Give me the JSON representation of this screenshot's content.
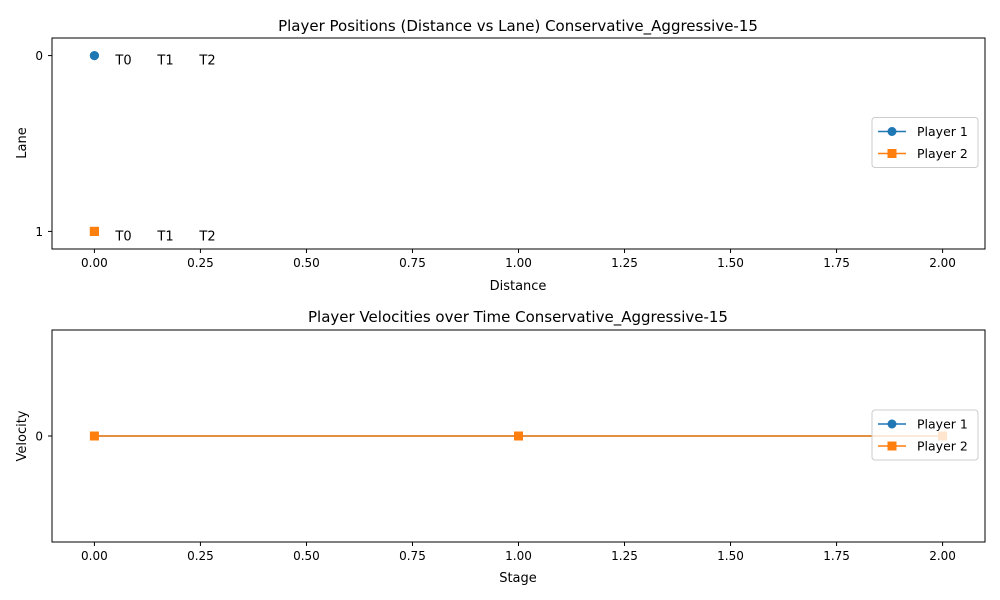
{
  "colors": {
    "player1": "#1f77b4",
    "player2": "#ff7f0e"
  },
  "chart_data": [
    {
      "type": "scatter",
      "title": "Player Positions (Distance vs Lane) Conservative_Aggressive-15",
      "xlabel": "Distance",
      "ylabel": "Lane",
      "xlim": [
        -0.1,
        2.1
      ],
      "ylim": [
        1.1,
        -0.1
      ],
      "y_inverted": true,
      "x_ticks": [
        0.0,
        0.25,
        0.5,
        0.75,
        1.0,
        1.25,
        1.5,
        1.75,
        2.0
      ],
      "x_tick_labels": [
        "0.00",
        "0.25",
        "0.50",
        "0.75",
        "1.00",
        "1.25",
        "1.50",
        "1.75",
        "2.00"
      ],
      "y_ticks": [
        0,
        1
      ],
      "y_tick_labels": [
        "0",
        "1"
      ],
      "legend_position": "center-right",
      "series": [
        {
          "name": "Player 1",
          "marker": "circle",
          "x": [
            0,
            0,
            0
          ],
          "y": [
            0,
            0,
            0
          ],
          "labels": [
            "T0",
            "T1",
            "T2"
          ]
        },
        {
          "name": "Player 2",
          "marker": "square",
          "x": [
            0,
            0,
            0
          ],
          "y": [
            1,
            1,
            1
          ],
          "labels": [
            "T0",
            "T1",
            "T2"
          ]
        }
      ]
    },
    {
      "type": "line",
      "title": "Player Velocities over Time Conservative_Aggressive-15",
      "xlabel": "Stage",
      "ylabel": "Velocity",
      "xlim": [
        -0.1,
        2.1
      ],
      "ylim": [
        -0.06,
        0.06
      ],
      "x_ticks": [
        0.0,
        0.25,
        0.5,
        0.75,
        1.0,
        1.25,
        1.5,
        1.75,
        2.0
      ],
      "x_tick_labels": [
        "0.00",
        "0.25",
        "0.50",
        "0.75",
        "1.00",
        "1.25",
        "1.50",
        "1.75",
        "2.00"
      ],
      "y_ticks": [
        0
      ],
      "y_tick_labels": [
        "0"
      ],
      "legend_position": "center-right",
      "x": [
        0,
        1,
        2
      ],
      "series": [
        {
          "name": "Player 1",
          "marker": "circle",
          "values": [
            0,
            0,
            0
          ]
        },
        {
          "name": "Player 2",
          "marker": "square",
          "values": [
            0,
            0,
            0
          ]
        }
      ]
    }
  ]
}
